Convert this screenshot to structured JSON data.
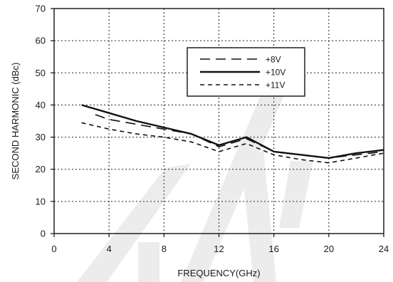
{
  "chart_data": {
    "type": "line",
    "title": "",
    "xlabel": "FREQUENCY(GHz)",
    "ylabel": "SECOND HARMONIC (dBc)",
    "xlim": [
      0,
      24
    ],
    "ylim": [
      0,
      70
    ],
    "xticks": [
      "0",
      "4",
      "8",
      "12",
      "16",
      "20",
      "24"
    ],
    "yticks": [
      "0",
      "10",
      "20",
      "30",
      "40",
      "50",
      "60",
      "70"
    ],
    "grid": true,
    "legend_position": "top-right",
    "series": [
      {
        "name": "+8V",
        "line_style": "long-dash",
        "x": [
          3,
          4,
          6,
          8,
          10,
          12,
          14,
          16,
          18,
          20,
          22,
          24
        ],
        "y": [
          37,
          35.5,
          34,
          32.5,
          31,
          27,
          29.5,
          25.5,
          24.5,
          23.5,
          24.5,
          25.5
        ]
      },
      {
        "name": "+10V",
        "line_style": "solid",
        "x": [
          2,
          4,
          6,
          8,
          10,
          12,
          14,
          16,
          18,
          20,
          22,
          24
        ],
        "y": [
          40,
          37.5,
          35,
          33,
          31,
          27.5,
          30,
          25.5,
          24.5,
          23.5,
          25,
          26
        ]
      },
      {
        "name": "+11V",
        "line_style": "short-dash",
        "x": [
          2,
          4,
          6,
          8,
          10,
          12,
          14,
          16,
          18,
          20,
          22,
          24
        ],
        "y": [
          34.5,
          32.5,
          31,
          30,
          28.5,
          25.5,
          28,
          24.5,
          23,
          22,
          23.5,
          25
        ]
      }
    ],
    "colors": {
      "line": "#111111",
      "grid": "#222222",
      "watermark": "#ececec"
    }
  }
}
